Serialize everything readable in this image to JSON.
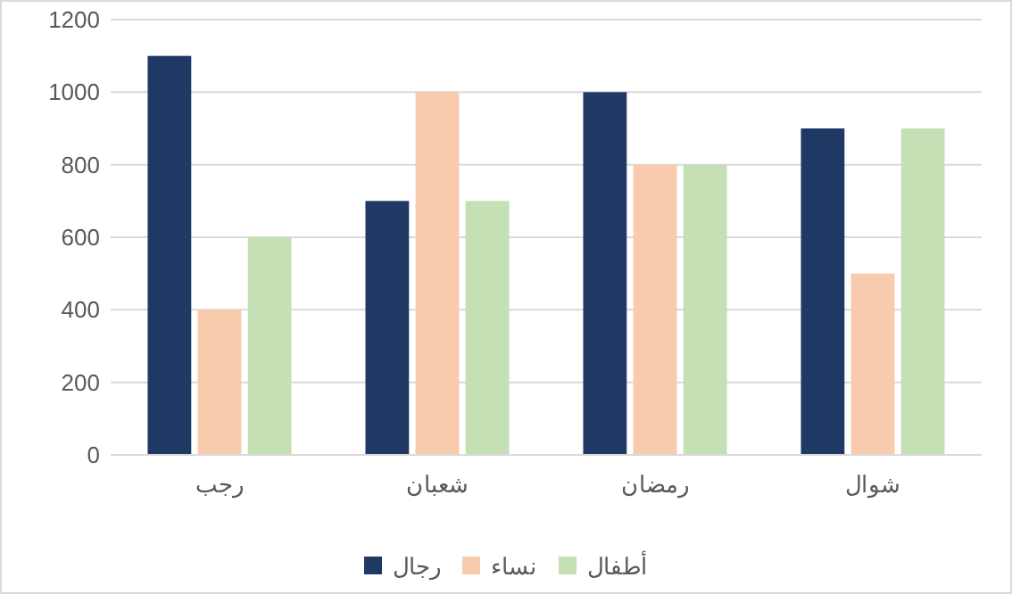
{
  "chart_data": {
    "type": "bar",
    "categories": [
      "رجب",
      "شعبان",
      "رمضان",
      "شوال"
    ],
    "series": [
      {
        "name": "رجال",
        "color": "#203864",
        "values": [
          1100,
          700,
          1000,
          900
        ]
      },
      {
        "name": "نساء",
        "color": "#f8cbad",
        "values": [
          400,
          1000,
          800,
          500
        ]
      },
      {
        "name": "أطفال",
        "color": "#c5e0b4",
        "values": [
          600,
          700,
          800,
          900
        ]
      }
    ],
    "ylim": [
      0,
      1200
    ],
    "yticks": [
      0,
      200,
      400,
      600,
      800,
      1000,
      1200
    ],
    "grid": "y",
    "legend": "bottom"
  }
}
